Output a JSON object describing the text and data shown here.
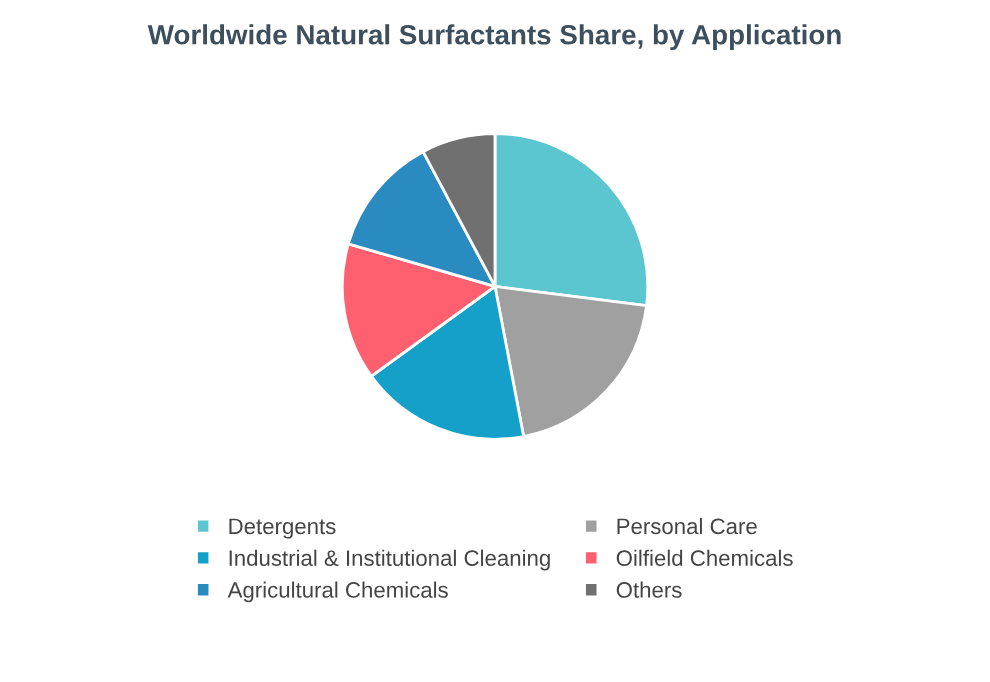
{
  "chart_data": {
    "type": "pie",
    "title": "Worldwide Natural Surfactants Share, by Application",
    "categories": [
      "Detergents",
      "Personal Care",
      "Industrial & Institutional Cleaning",
      "Oilfield Chemicals",
      "Agricultural Chemicals",
      "Others"
    ],
    "values": [
      27,
      20,
      18,
      14.5,
      12.7,
      7.8
    ],
    "colors": [
      "#5bc5d0",
      "#a0a0a0",
      "#14a0c8",
      "#ff6070",
      "#2a8bc0",
      "#707070"
    ],
    "legend": "bottom"
  }
}
